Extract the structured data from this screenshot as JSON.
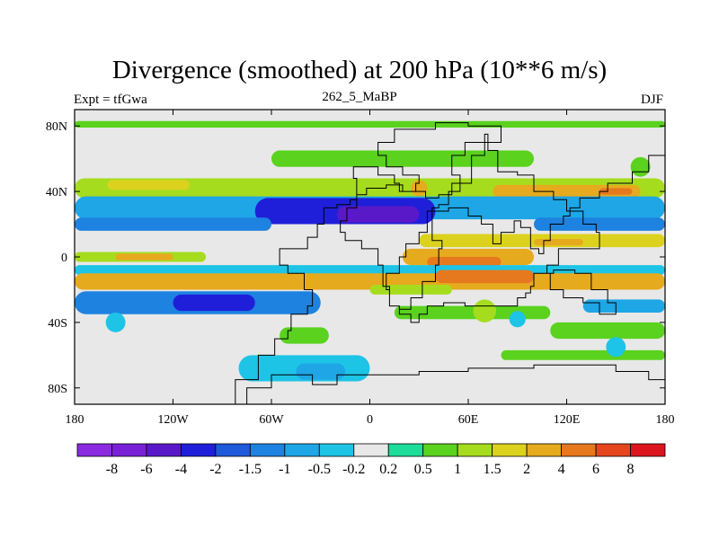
{
  "header": {
    "title": "Divergence (smoothed) at 200 hPa (10**6 m/s)",
    "left_label": "Expt = tfGwa",
    "center_label": "262_5_MaBP",
    "right_label": "DJF"
  },
  "chart_data": {
    "type": "heatmap",
    "title": "Divergence (smoothed) at 200 hPa (10**6 m/s)",
    "projection": "cylindrical equidistant",
    "xlim": [
      -180,
      180
    ],
    "ylim": [
      -90,
      90
    ],
    "x_ticks": [
      {
        "value": -180,
        "label": "180"
      },
      {
        "value": -120,
        "label": "120W"
      },
      {
        "value": -60,
        "label": "60W"
      },
      {
        "value": 0,
        "label": "0"
      },
      {
        "value": 60,
        "label": "60E"
      },
      {
        "value": 120,
        "label": "120E"
      },
      {
        "value": 180,
        "label": "180"
      }
    ],
    "y_ticks": [
      {
        "value": 80,
        "label": "80N"
      },
      {
        "value": 40,
        "label": "40N"
      },
      {
        "value": 0,
        "label": "0"
      },
      {
        "value": -40,
        "label": "40S"
      },
      {
        "value": -80,
        "label": "80S"
      }
    ],
    "colorbar": {
      "colors": [
        "#8a2be2",
        "#7a21d8",
        "#5a19c8",
        "#1f1fd9",
        "#1e5ad9",
        "#1e82e0",
        "#1ea6e6",
        "#1ec4e6",
        "#e8e8e8",
        "#1edc9a",
        "#5ad21e",
        "#a6dc1e",
        "#dcd21e",
        "#e6aa1e",
        "#e6781e",
        "#e6461e",
        "#dc141e"
      ],
      "labels": [
        "-8",
        "-6",
        "-4",
        "-2",
        "-1.5",
        "-1",
        "-0.5",
        "-0.2",
        "0.2",
        "0.5",
        "1",
        "1.5",
        "2",
        "4",
        "6",
        "8"
      ],
      "neutral_band": [
        -0.2,
        0.2
      ]
    },
    "bands": [
      {
        "lat_center": 81,
        "lat_half_width": 2,
        "lon_start": -180,
        "lon_end": 180,
        "value": 0.6
      },
      {
        "lat_center": 60,
        "lat_half_width": 5,
        "lon_start": -60,
        "lon_end": 100,
        "value": 0.8
      },
      {
        "lat_center": 42,
        "lat_half_width": 6,
        "lon_start": -180,
        "lon_end": 180,
        "value": 1.0
      },
      {
        "lat_center": 44,
        "lat_half_width": 3,
        "lon_start": -160,
        "lon_end": -110,
        "value": 1.6
      },
      {
        "lat_center": 40,
        "lat_half_width": 4,
        "lon_start": 75,
        "lon_end": 165,
        "value": 2.2
      },
      {
        "lat_center": 40,
        "lat_half_width": 2,
        "lon_start": 140,
        "lon_end": 160,
        "value": 4.5
      },
      {
        "lat_center": 30,
        "lat_half_width": 7,
        "lon_start": -180,
        "lon_end": 180,
        "value": -0.6
      },
      {
        "lat_center": 28,
        "lat_half_width": 8,
        "lon_start": -70,
        "lon_end": 40,
        "value": -2.5
      },
      {
        "lat_center": 26,
        "lat_half_width": 5,
        "lon_start": -20,
        "lon_end": 30,
        "value": -4.5
      },
      {
        "lat_center": 20,
        "lat_half_width": 4,
        "lon_start": -180,
        "lon_end": -60,
        "value": -1.5
      },
      {
        "lat_center": 20,
        "lat_half_width": 4,
        "lon_start": 100,
        "lon_end": 180,
        "value": -1.2
      },
      {
        "lat_center": 10,
        "lat_half_width": 4,
        "lon_start": 30,
        "lon_end": 180,
        "value": 1.5
      },
      {
        "lat_center": 9,
        "lat_half_width": 2,
        "lon_start": 100,
        "lon_end": 130,
        "value": 2.5
      },
      {
        "lat_center": 0,
        "lat_half_width": 3,
        "lon_start": -180,
        "lon_end": -100,
        "value": 1.2
      },
      {
        "lat_center": 0,
        "lat_half_width": 2,
        "lon_start": -155,
        "lon_end": -120,
        "value": 2.2
      },
      {
        "lat_center": 0,
        "lat_half_width": 5,
        "lon_start": 20,
        "lon_end": 100,
        "value": 2.5
      },
      {
        "lat_center": -3,
        "lat_half_width": 3,
        "lon_start": 35,
        "lon_end": 80,
        "value": 4.5
      },
      {
        "lat_center": -8,
        "lat_half_width": 3,
        "lon_start": -180,
        "lon_end": 180,
        "value": -0.5
      },
      {
        "lat_center": -15,
        "lat_half_width": 5,
        "lon_start": -180,
        "lon_end": 180,
        "value": 2.2
      },
      {
        "lat_center": -15,
        "lat_half_width": 3,
        "lon_start": -100,
        "lon_end": 60,
        "value": 3.5
      },
      {
        "lat_center": -12,
        "lat_half_width": 4,
        "lon_start": 40,
        "lon_end": 100,
        "value": 5.0
      },
      {
        "lat_center": -20,
        "lat_half_width": 3,
        "lon_start": 0,
        "lon_end": 50,
        "value": 1.2
      },
      {
        "lat_center": -28,
        "lat_half_width": 7,
        "lon_start": -180,
        "lon_end": -30,
        "value": -1.2
      },
      {
        "lat_center": -28,
        "lat_half_width": 5,
        "lon_start": -120,
        "lon_end": -70,
        "value": -2.5
      },
      {
        "lat_center": -30,
        "lat_half_width": 4,
        "lon_start": 130,
        "lon_end": 180,
        "value": -1.0
      },
      {
        "lat_center": -34,
        "lat_half_width": 4,
        "lon_start": 15,
        "lon_end": 110,
        "value": 0.8
      },
      {
        "lat_center": -48,
        "lat_half_width": 5,
        "lon_start": -55,
        "lon_end": -25,
        "value": 0.9
      },
      {
        "lat_center": -45,
        "lat_half_width": 5,
        "lon_start": 110,
        "lon_end": 180,
        "value": 0.8
      },
      {
        "lat_center": -60,
        "lat_half_width": 3,
        "lon_start": 80,
        "lon_end": 180,
        "value": 0.6
      },
      {
        "lat_center": -68,
        "lat_half_width": 8,
        "lon_start": -80,
        "lon_end": 0,
        "value": -0.5
      },
      {
        "lat_center": -70,
        "lat_half_width": 5,
        "lon_start": -45,
        "lon_end": -15,
        "value": -0.8
      }
    ],
    "blobs": [
      {
        "lon": -155,
        "lat": -40,
        "radius": 6,
        "value": -0.5
      },
      {
        "lon": 70,
        "lat": -33,
        "radius": 7,
        "value": 1.2
      },
      {
        "lon": 90,
        "lat": -38,
        "radius": 5,
        "value": -0.5
      },
      {
        "lon": 165,
        "lat": 55,
        "radius": 6,
        "value": 0.8
      },
      {
        "lon": 30,
        "lat": 42,
        "radius": 5,
        "value": 2.0
      },
      {
        "lon": 150,
        "lat": -55,
        "radius": 6,
        "value": -0.5
      }
    ],
    "land_outline": [
      [
        [
          -85,
          -90
        ],
        [
          -82,
          -75
        ],
        [
          -70,
          -75
        ],
        [
          -68,
          -60
        ],
        [
          -60,
          -60
        ],
        [
          -58,
          -50
        ],
        [
          -50,
          -45
        ],
        [
          -48,
          -35
        ],
        [
          -38,
          -30
        ],
        [
          -35,
          -20
        ],
        [
          -40,
          -10
        ],
        [
          -50,
          -5
        ],
        [
          -55,
          5
        ],
        [
          -38,
          12
        ],
        [
          -32,
          20
        ],
        [
          -28,
          30
        ],
        [
          -20,
          32
        ],
        [
          -12,
          35
        ],
        [
          -8,
          48
        ],
        [
          -10,
          55
        ],
        [
          0,
          55
        ],
        [
          5,
          50
        ],
        [
          15,
          45
        ],
        [
          18,
          40
        ],
        [
          26,
          40
        ],
        [
          34,
          36
        ],
        [
          42,
          38
        ],
        [
          50,
          45
        ],
        [
          55,
          50
        ],
        [
          50,
          62
        ],
        [
          58,
          70
        ],
        [
          70,
          75
        ],
        [
          72,
          65
        ],
        [
          78,
          52
        ],
        [
          90,
          50
        ],
        [
          100,
          40
        ],
        [
          112,
          35
        ],
        [
          120,
          28
        ],
        [
          130,
          20
        ],
        [
          138,
          15
        ],
        [
          140,
          5
        ],
        [
          120,
          5
        ],
        [
          115,
          -5
        ],
        [
          108,
          -10
        ],
        [
          110,
          -20
        ],
        [
          118,
          -25
        ],
        [
          130,
          -28
        ],
        [
          140,
          -35
        ],
        [
          148,
          -35
        ],
        [
          150,
          -28
        ],
        [
          145,
          -20
        ],
        [
          135,
          -10
        ],
        [
          125,
          -8
        ],
        [
          112,
          -10
        ],
        [
          100,
          -18
        ],
        [
          98,
          -22
        ],
        [
          95,
          -25
        ],
        [
          90,
          -30
        ],
        [
          70,
          -30
        ],
        [
          58,
          -28
        ],
        [
          45,
          -30
        ],
        [
          35,
          -35
        ],
        [
          30,
          -40
        ],
        [
          25,
          -35
        ],
        [
          18,
          -30
        ],
        [
          12,
          -18
        ],
        [
          8,
          -5
        ],
        [
          5,
          5
        ],
        [
          -5,
          10
        ],
        [
          -15,
          15
        ],
        [
          -18,
          22
        ],
        [
          -14,
          30
        ],
        [
          -8,
          38
        ],
        [
          -2,
          42
        ],
        [
          10,
          44
        ],
        [
          20,
          40
        ],
        [
          28,
          45
        ],
        [
          30,
          50
        ],
        [
          20,
          55
        ],
        [
          10,
          62
        ],
        [
          5,
          70
        ],
        [
          15,
          78
        ],
        [
          40,
          82
        ],
        [
          60,
          80
        ],
        [
          80,
          78
        ],
        [
          80,
          70
        ],
        [
          70,
          62
        ],
        [
          62,
          58
        ],
        [
          62,
          45
        ],
        [
          55,
          40
        ],
        [
          48,
          32
        ],
        [
          42,
          30
        ],
        [
          38,
          20
        ],
        [
          38,
          10
        ],
        [
          44,
          5
        ],
        [
          42,
          -5
        ],
        [
          40,
          -15
        ],
        [
          32,
          -25
        ],
        [
          25,
          -32
        ],
        [
          18,
          -30
        ],
        [
          12,
          -20
        ],
        [
          10,
          -10
        ],
        [
          18,
          0
        ],
        [
          22,
          8
        ],
        [
          30,
          15
        ],
        [
          35,
          28
        ],
        [
          48,
          30
        ],
        [
          60,
          25
        ],
        [
          68,
          20
        ],
        [
          75,
          8
        ],
        [
          80,
          15
        ],
        [
          88,
          22
        ],
        [
          92,
          18
        ],
        [
          98,
          5
        ],
        [
          103,
          2
        ],
        [
          106,
          10
        ],
        [
          110,
          20
        ],
        [
          118,
          25
        ],
        [
          122,
          30
        ],
        [
          128,
          36
        ],
        [
          140,
          40
        ],
        [
          145,
          45
        ],
        [
          160,
          52
        ],
        [
          170,
          62
        ],
        [
          180,
          68
        ],
        [
          180,
          -90
        ]
      ],
      [
        [
          -80,
          -92
        ],
        [
          -75,
          -80
        ],
        [
          -60,
          -72
        ],
        [
          -35,
          -78
        ],
        [
          -20,
          -72
        ],
        [
          0,
          -72
        ],
        [
          30,
          -70
        ],
        [
          60,
          -68
        ],
        [
          80,
          -68
        ],
        [
          100,
          -66
        ],
        [
          130,
          -66
        ],
        [
          150,
          -70
        ],
        [
          170,
          -75
        ],
        [
          180,
          -80
        ]
      ]
    ]
  }
}
